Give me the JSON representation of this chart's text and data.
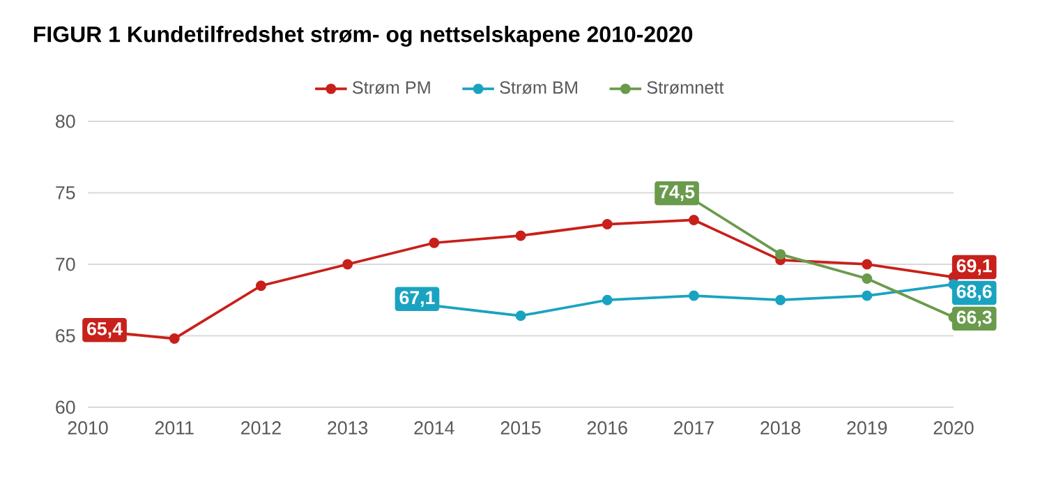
{
  "chart_data": {
    "type": "line",
    "title": "FIGUR 1 Kundetilfredshet strøm- og nettselskapene 2010-2020",
    "x": [
      2010,
      2011,
      2012,
      2013,
      2014,
      2015,
      2016,
      2017,
      2018,
      2019,
      2020
    ],
    "xlim": [
      2010,
      2020
    ],
    "xticks": [
      2010,
      2011,
      2012,
      2013,
      2014,
      2015,
      2016,
      2017,
      2018,
      2019,
      2020
    ],
    "ylim": [
      60,
      80
    ],
    "yticks": [
      60,
      65,
      70,
      75,
      80
    ],
    "grid": "y",
    "legend": "top",
    "marker": "circle",
    "line_style": "solid",
    "series": [
      {
        "name": "Strøm PM",
        "color": "#c8201a",
        "values": [
          65.4,
          64.8,
          68.5,
          70.0,
          71.5,
          72.0,
          72.8,
          73.1,
          70.3,
          70.0,
          69.1
        ],
        "value_labels": [
          "65,4",
          null,
          null,
          null,
          null,
          null,
          null,
          null,
          null,
          null,
          "69,1"
        ]
      },
      {
        "name": "Strøm BM",
        "color": "#1aa3c0",
        "values": [
          null,
          null,
          null,
          null,
          67.1,
          66.4,
          67.5,
          67.8,
          67.5,
          67.8,
          68.6
        ],
        "value_labels": [
          null,
          null,
          null,
          null,
          "67,1",
          null,
          null,
          null,
          null,
          null,
          "68,6"
        ]
      },
      {
        "name": "Strømnett",
        "color": "#6a9a4c",
        "values": [
          null,
          null,
          null,
          null,
          null,
          null,
          null,
          74.5,
          70.7,
          69.0,
          66.3
        ],
        "value_labels": [
          null,
          null,
          null,
          null,
          null,
          null,
          null,
          "74,5",
          null,
          null,
          "66,3"
        ]
      }
    ]
  }
}
